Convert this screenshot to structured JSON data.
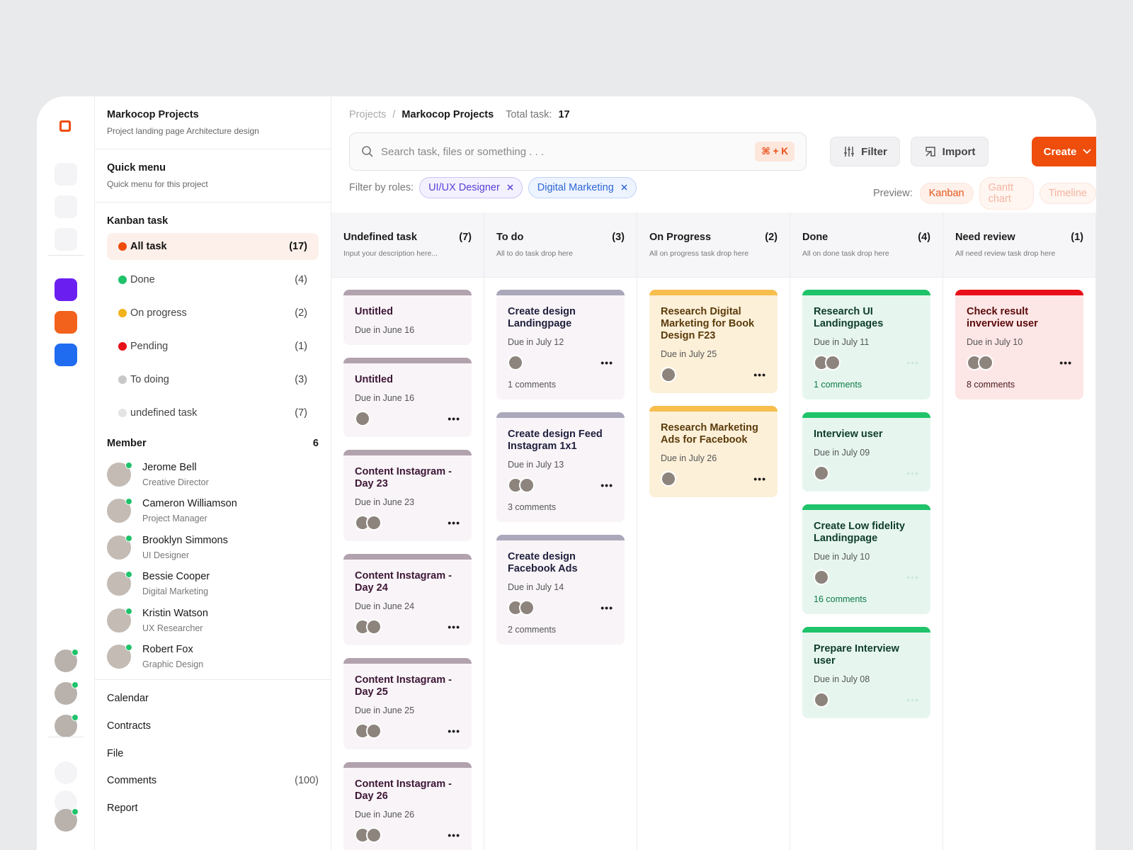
{
  "project": {
    "title": "Markocop Projects",
    "subtitle": "Project landing page Architecture design"
  },
  "quick_menu": {
    "title": "Quick menu",
    "subtitle": "Quick menu for this project"
  },
  "kanban_menu": {
    "title": "Kanban task",
    "items": [
      {
        "label": "All task",
        "count": "(17)"
      },
      {
        "label": "Done",
        "count": "(4)"
      },
      {
        "label": "On progress",
        "count": "(2)"
      },
      {
        "label": "Pending",
        "count": "(1)"
      },
      {
        "label": "To doing",
        "count": "(3)"
      },
      {
        "label": "undefined task",
        "count": "(7)"
      }
    ]
  },
  "members": {
    "title": "Member",
    "count": "6",
    "list": [
      {
        "name": "Jerome Bell",
        "role": "Creative Director"
      },
      {
        "name": "Cameron Williamson",
        "role": "Project Manager"
      },
      {
        "name": "Brooklyn Simmons",
        "role": "UI Designer"
      },
      {
        "name": "Bessie Cooper",
        "role": "Digital Marketing"
      },
      {
        "name": "Kristin Watson",
        "role": "UX Researcher"
      },
      {
        "name": "Robert Fox",
        "role": "Graphic Design"
      }
    ]
  },
  "nav": [
    {
      "label": "Calendar"
    },
    {
      "label": "Contracts"
    },
    {
      "label": "File"
    },
    {
      "label": "Comments",
      "count": "(100)"
    },
    {
      "label": "Report"
    }
  ],
  "breadcrumb": {
    "root": "Projects",
    "separator": "/",
    "current": "Markocop Projects",
    "total_label": "Total task:",
    "total": "17"
  },
  "search": {
    "placeholder": "Search task, files or something . . .",
    "shortcut": "⌘ + K"
  },
  "actions": [
    "Filter",
    "Import",
    "Create"
  ],
  "filter": {
    "label": "Filter by roles:",
    "chips": [
      "UI/UX Designer",
      "Digital Marketing"
    ]
  },
  "preview": {
    "label": "Preview:",
    "options": [
      "Kanban",
      "Gantt chart",
      "Timeline"
    ]
  },
  "columns": [
    {
      "title": "Undefined task",
      "count": "(7)",
      "description": "Input your description here...",
      "cards": [
        {
          "title": "Untitled",
          "due": "Due in June 16"
        },
        {
          "title": "Untitled",
          "due": "Due in June 16"
        },
        {
          "title": "Content Instagram - Day 23",
          "due": "Due in June 23"
        },
        {
          "title": "Content Instagram - Day 24",
          "due": "Due in June 24"
        },
        {
          "title": "Content Instagram - Day 25",
          "due": "Due in June 25"
        },
        {
          "title": "Content Instagram - Day 26",
          "due": "Due in June 26"
        }
      ]
    },
    {
      "title": "To do",
      "count": "(3)",
      "description": "All to do task drop here",
      "cards": [
        {
          "title": "Create design Landingpage",
          "due": "Due in July 12",
          "comments": "1 comments"
        },
        {
          "title": "Create design Feed Instagram 1x1",
          "due": "Due in July 13",
          "comments": "3 comments"
        },
        {
          "title": "Create design Facebook Ads",
          "due": "Due in July 14",
          "comments": "2 comments"
        }
      ]
    },
    {
      "title": "On Progress",
      "count": "(2)",
      "description": "All on progress task drop here",
      "cards": [
        {
          "title": "Research Digital Marketing for Book Design F23",
          "due": "Due in July 25"
        },
        {
          "title": "Research Marketing Ads for Facebook",
          "due": "Due in July 26"
        }
      ]
    },
    {
      "title": "Done",
      "count": "(4)",
      "description": "All on done task drop here",
      "cards": [
        {
          "title": "Research UI Landingpages",
          "due": "Due in July 11",
          "comments": "1 comments"
        },
        {
          "title": "Interview user",
          "due": "Due in July 09"
        },
        {
          "title": "Create Low fidelity Landingpage",
          "due": "Due in July 10",
          "comments": "16 comments"
        },
        {
          "title": "Prepare Interview user",
          "due": "Due in July 08"
        }
      ]
    },
    {
      "title": "Need review",
      "count": "(1)",
      "description": "All need review task drop here",
      "cards": [
        {
          "title": "Check result inverview user",
          "due": "Due in July 10",
          "comments": "8 comments"
        }
      ]
    }
  ]
}
